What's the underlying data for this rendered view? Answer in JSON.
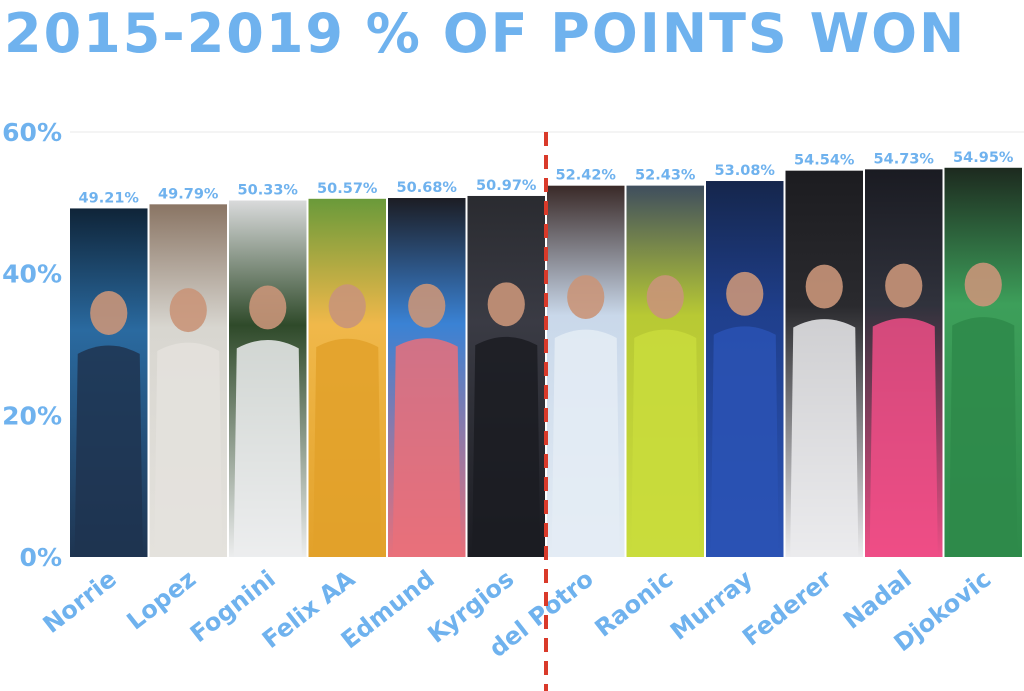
{
  "title": "2015-2019 % OF POINTS WON",
  "colors": {
    "accent": "#6fb2ee",
    "divider": "#d93a2a",
    "gridline": "#e8e8e8"
  },
  "chart_data": {
    "type": "bar",
    "title": "2015-2019 % OF POINTS WON",
    "xlabel": "",
    "ylabel": "",
    "ylim": [
      0,
      60
    ],
    "yticks": [
      "0%",
      "20%",
      "40%",
      "60%"
    ],
    "grid": false,
    "categories": [
      "Norrie",
      "Lopez",
      "Fognini",
      "Felix AA",
      "Edmund",
      "Kyrgios",
      "del Potro",
      "Raonic",
      "Murray",
      "Federer",
      "Nadal",
      "Djokovic"
    ],
    "values": [
      49.21,
      49.79,
      50.33,
      50.57,
      50.68,
      50.97,
      52.42,
      52.43,
      53.08,
      54.54,
      54.73,
      54.95
    ],
    "value_labels": [
      "49.21%",
      "49.79%",
      "50.33%",
      "50.57%",
      "50.68%",
      "50.97%",
      "52.42%",
      "52.43%",
      "53.08%",
      "54.54%",
      "54.73%",
      "54.95%"
    ],
    "bar_fill": "player photographs",
    "divider_after": "Kyrgios"
  }
}
